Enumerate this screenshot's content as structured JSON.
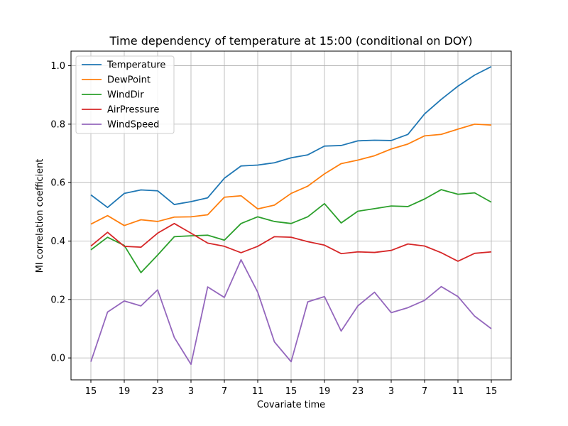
{
  "chart_data": {
    "type": "line",
    "title": "Time dependency of temperature at 15:00 (conditional on DOY)",
    "xlabel": "Covariate time",
    "ylabel": "MI correlation coefficient",
    "x_tick_labels": [
      "15",
      "19",
      "23",
      "3",
      "7",
      "11",
      "15",
      "19",
      "23",
      "3",
      "7",
      "11",
      "15"
    ],
    "ylim": [
      -0.075,
      1.05
    ],
    "y_ticks": [
      0.0,
      0.2,
      0.4,
      0.6,
      0.8,
      1.0
    ],
    "y_tick_labels": [
      "0.0",
      "0.2",
      "0.4",
      "0.6",
      "0.8",
      "1.0"
    ],
    "grid": true,
    "legend_position": "upper-left",
    "series": [
      {
        "name": "Temperature",
        "color": "#1f77b4",
        "values": [
          0.558,
          0.515,
          0.563,
          0.575,
          0.572,
          0.525,
          0.535,
          0.548,
          0.615,
          0.657,
          0.66,
          0.668,
          0.685,
          0.695,
          0.725,
          0.727,
          0.743,
          0.745,
          0.744,
          0.765,
          0.835,
          0.885,
          0.93,
          0.968,
          0.997
        ]
      },
      {
        "name": "DewPoint",
        "color": "#ff7f0e",
        "values": [
          0.458,
          0.487,
          0.453,
          0.473,
          0.467,
          0.482,
          0.483,
          0.49,
          0.55,
          0.555,
          0.51,
          0.523,
          0.563,
          0.588,
          0.63,
          0.665,
          0.677,
          0.692,
          0.715,
          0.732,
          0.76,
          0.765,
          0.783,
          0.8,
          0.797
        ]
      },
      {
        "name": "WindDir",
        "color": "#2ca02c",
        "values": [
          0.37,
          0.413,
          0.385,
          0.292,
          0.352,
          0.415,
          0.418,
          0.42,
          0.403,
          0.46,
          0.483,
          0.467,
          0.46,
          0.483,
          0.528,
          0.462,
          0.502,
          0.511,
          0.52,
          0.518,
          0.544,
          0.576,
          0.56,
          0.565,
          0.533
        ]
      },
      {
        "name": "AirPressure",
        "color": "#d62728",
        "values": [
          0.383,
          0.43,
          0.382,
          0.379,
          0.427,
          0.46,
          0.427,
          0.393,
          0.382,
          0.36,
          0.382,
          0.415,
          0.413,
          0.398,
          0.386,
          0.357,
          0.363,
          0.361,
          0.368,
          0.39,
          0.383,
          0.36,
          0.331,
          0.358,
          0.363
        ]
      },
      {
        "name": "WindSpeed",
        "color": "#9467bd",
        "values": [
          -0.013,
          0.157,
          0.195,
          0.178,
          0.233,
          0.07,
          -0.022,
          0.243,
          0.207,
          0.336,
          0.225,
          0.055,
          -0.013,
          0.192,
          0.21,
          0.092,
          0.178,
          0.225,
          0.155,
          0.172,
          0.197,
          0.244,
          0.21,
          0.143,
          0.1
        ]
      }
    ]
  }
}
